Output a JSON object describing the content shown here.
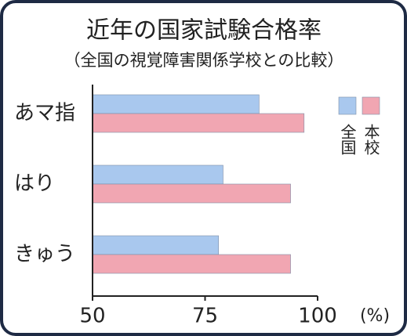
{
  "chart_data": {
    "type": "bar",
    "orientation": "horizontal",
    "title": "近年の国家試験合格率",
    "subtitle": "（全国の視覚障害関係学校との比較）",
    "categories": [
      "あマ指",
      "はり",
      "きゅう"
    ],
    "series": [
      {
        "name": "全国",
        "color": "#a9c8ee",
        "values": [
          87,
          79,
          78
        ]
      },
      {
        "name": "本校",
        "color": "#f1a6b2",
        "values": [
          97,
          94,
          94
        ]
      }
    ],
    "xlim": [
      50,
      100
    ],
    "xticks": [
      50,
      75,
      100
    ],
    "x_label": "(%)",
    "legend": "upper right"
  }
}
